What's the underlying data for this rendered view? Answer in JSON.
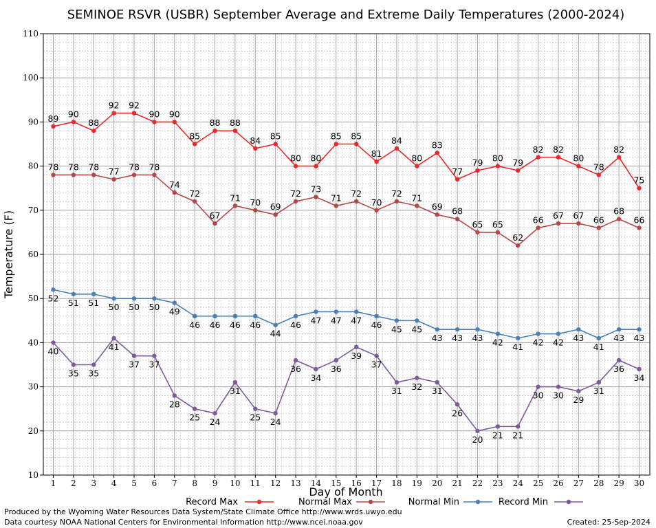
{
  "chart_data": {
    "type": "line",
    "title": "SEMINOE RSVR (USBR) September Average and Extreme Daily Temperatures (2000-2024)",
    "xlabel": "Day of Month",
    "ylabel": "Temperature (F)",
    "xlim": [
      1,
      30
    ],
    "ylim": [
      10,
      110
    ],
    "y_ticks": [
      10,
      20,
      30,
      40,
      50,
      60,
      70,
      80,
      90,
      100,
      110
    ],
    "x": [
      1,
      2,
      3,
      4,
      5,
      6,
      7,
      8,
      9,
      10,
      11,
      12,
      13,
      14,
      15,
      16,
      17,
      18,
      19,
      20,
      21,
      22,
      23,
      24,
      25,
      26,
      27,
      28,
      29,
      30
    ],
    "grid": true,
    "legend_position": "bottom",
    "series": [
      {
        "name": "Record Max",
        "color": "#e8282b",
        "label_pos": "above",
        "values": [
          89,
          90,
          88,
          92,
          92,
          90,
          90,
          85,
          88,
          88,
          84,
          85,
          80,
          80,
          85,
          85,
          81,
          84,
          80,
          83,
          77,
          79,
          80,
          79,
          82,
          82,
          80,
          78,
          82,
          75
        ]
      },
      {
        "name": "Normal Max",
        "color": "#b5474a",
        "label_pos": "above",
        "values": [
          78,
          78,
          78,
          77,
          78,
          78,
          74,
          72,
          67,
          71,
          70,
          69,
          72,
          73,
          71,
          72,
          70,
          72,
          71,
          69,
          68,
          65,
          65,
          62,
          66,
          67,
          67,
          66,
          68,
          66
        ]
      },
      {
        "name": "Normal Min",
        "color": "#4a7fb5",
        "label_pos": "below",
        "values": [
          52,
          51,
          51,
          50,
          50,
          50,
          49,
          46,
          46,
          46,
          46,
          44,
          46,
          47,
          47,
          47,
          46,
          45,
          45,
          43,
          43,
          43,
          42,
          41,
          42,
          42,
          43,
          41,
          43,
          43
        ]
      },
      {
        "name": "Record Min",
        "color": "#7e5a9b",
        "label_pos": "below",
        "values": [
          40,
          35,
          35,
          41,
          37,
          37,
          28,
          25,
          24,
          31,
          25,
          24,
          36,
          34,
          36,
          39,
          37,
          31,
          32,
          31,
          26,
          20,
          21,
          21,
          30,
          30,
          29,
          31,
          36,
          34
        ]
      }
    ]
  },
  "footer": {
    "credit1": "Produced by the Wyoming Water Resources Data System/State Climate Office http://www.wrds.uwyo.edu",
    "credit2": "Data courtesy NOAA National Centers for Environmental Information http://www.ncei.noaa.gov",
    "created": "Created:  25-Sep-2024"
  }
}
